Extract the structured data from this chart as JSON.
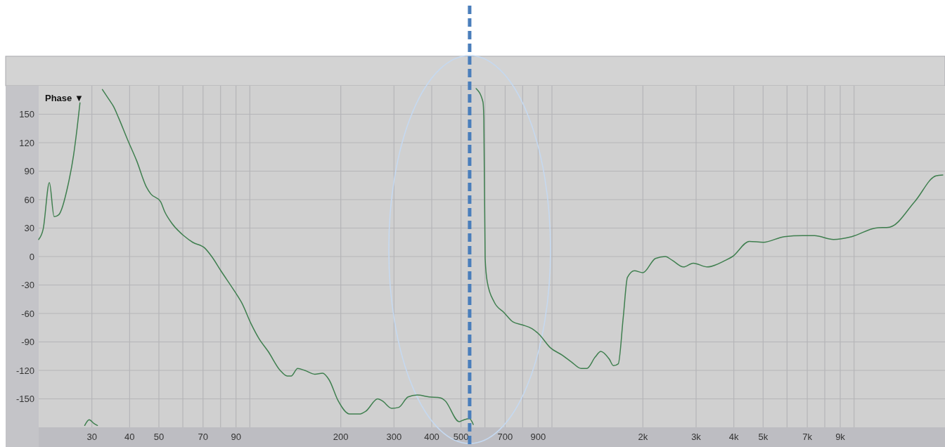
{
  "chart_data": {
    "type": "line",
    "ylabel": "Phase ▼",
    "log": "x",
    "grid": true,
    "xlim": [
      20,
      20000
    ],
    "ylim": [
      -180,
      180
    ],
    "xticks": [
      30,
      40,
      50,
      {
        "value": 60,
        "label": null
      },
      70,
      {
        "value": 80,
        "label": null
      },
      90,
      {
        "value": 100,
        "label": null
      },
      200,
      300,
      400,
      500,
      {
        "value": 600,
        "label": null
      },
      700,
      {
        "value": 800,
        "label": null
      },
      900,
      {
        "value": 1000,
        "label": null
      },
      {
        "value": 2000,
        "label": "2k"
      },
      {
        "value": 3000,
        "label": "3k"
      },
      {
        "value": 4000,
        "label": "4k"
      },
      {
        "value": 5000,
        "label": "5k"
      },
      {
        "value": 6000,
        "label": null
      },
      {
        "value": 7000,
        "label": "7k"
      },
      {
        "value": 8000,
        "label": null
      },
      {
        "value": 9000,
        "label": "9k"
      },
      {
        "value": 10000,
        "label": null
      }
    ],
    "yticks": [
      -150,
      -120,
      -90,
      -60,
      -30,
      0,
      30,
      60,
      90,
      120,
      150
    ],
    "ref_lines": [
      {
        "axis": "x",
        "value": 534,
        "color": "#4a7ebb",
        "line_style": "dashed"
      }
    ],
    "series": [
      {
        "color": "#3f7f4f",
        "x": [
          20,
          20.7,
          21.7,
          22.5,
          23.3,
          25.0,
          26.1,
          26.8,
          27.4
        ],
        "values": [
          18,
          29,
          78,
          42,
          44,
          75,
          107,
          135,
          162
        ]
      },
      {
        "color": "#3f7f4f",
        "x": [
          28.4,
          29.4,
          30.5,
          31.3
        ],
        "values": [
          -178,
          -172,
          -176,
          -178
        ]
      },
      {
        "color": "#3f7f4f",
        "x": [
          32.5,
          34.1,
          35.4,
          36.8,
          39.4,
          42.2,
          45.5,
          47.0,
          50.6,
          52.3,
          55.2,
          60.4,
          64.7,
          70.9,
          74.8,
          80.2,
          89.2,
          94.1,
          101,
          107,
          115,
          126,
          133,
          137,
          144,
          152,
          164,
          174,
          183,
          196,
          214,
          230,
          242,
          265,
          274,
          295,
          311,
          334,
          358,
          392,
          429,
          443,
          493,
          512,
          534,
          549
        ],
        "values": [
          176,
          166,
          158,
          146,
          123,
          101,
          73,
          66,
          58,
          47,
          35,
          22,
          15,
          9,
          0,
          -15,
          -37,
          -49,
          -71,
          -86,
          -100,
          -120,
          -126,
          -126,
          -118,
          -120,
          -124,
          -123,
          -130,
          -152,
          -166,
          -166,
          -163,
          -150,
          -152,
          -160,
          -159,
          -148,
          -146,
          -148,
          -149,
          -152,
          -174,
          -172,
          -171,
          -177
        ]
      },
      {
        "color": "#3f7f4f",
        "x": [
          561,
          591,
          595,
          601,
          611,
          644,
          694,
          744,
          798,
          859,
          907,
          987,
          1082,
          1159,
          1250,
          1304,
          1390,
          1451,
          1547,
          1598,
          1658,
          1722,
          1778,
          1875,
          2000,
          2201,
          2372,
          2502,
          2725,
          2936,
          3268,
          3754,
          3960,
          4502,
          5010,
          5881,
          6760,
          7400,
          8550,
          9824,
          11780,
          13110,
          15890,
          18650,
          19670
        ],
        "values": [
          177,
          163,
          146,
          -2,
          -27,
          -48,
          -59,
          -69,
          -72,
          -76,
          -82,
          -96,
          -104,
          -111,
          -118,
          -118,
          -106,
          -100,
          -108,
          -115,
          -113,
          -64,
          -22,
          -15,
          -17,
          -2,
          0,
          -4,
          -11,
          -7,
          -11,
          -4,
          0,
          16,
          15,
          21,
          22,
          22,
          18,
          21,
          30,
          31,
          58,
          85,
          86
        ]
      }
    ]
  }
}
